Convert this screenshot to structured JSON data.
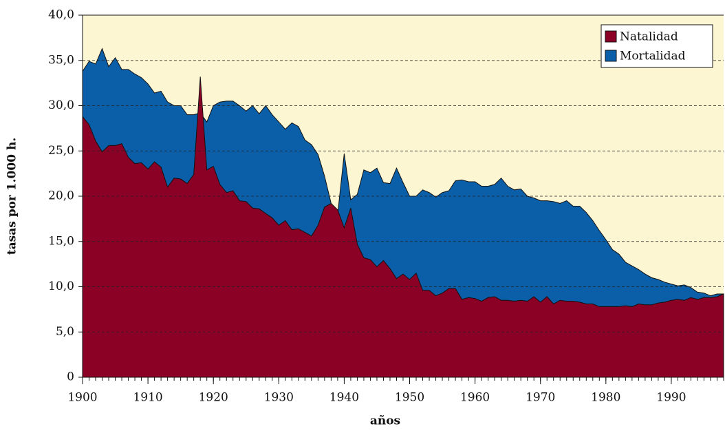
{
  "chart_data": {
    "type": "area",
    "x_label": "años",
    "y_label": "tasas por 1.000 h.",
    "x": [
      1900,
      1901,
      1902,
      1903,
      1904,
      1905,
      1906,
      1907,
      1908,
      1909,
      1910,
      1911,
      1912,
      1913,
      1914,
      1915,
      1916,
      1917,
      1918,
      1919,
      1920,
      1921,
      1922,
      1923,
      1924,
      1925,
      1926,
      1927,
      1928,
      1929,
      1930,
      1931,
      1932,
      1933,
      1934,
      1935,
      1936,
      1937,
      1938,
      1939,
      1940,
      1941,
      1942,
      1943,
      1944,
      1945,
      1946,
      1947,
      1948,
      1949,
      1950,
      1951,
      1952,
      1953,
      1954,
      1955,
      1956,
      1957,
      1958,
      1959,
      1960,
      1961,
      1962,
      1963,
      1964,
      1965,
      1966,
      1967,
      1968,
      1969,
      1970,
      1971,
      1972,
      1973,
      1974,
      1975,
      1976,
      1977,
      1978,
      1979,
      1980,
      1981,
      1982,
      1983,
      1984,
      1985,
      1986,
      1987,
      1988,
      1989,
      1990,
      1991,
      1992,
      1993,
      1994,
      1995,
      1996,
      1997,
      1998
    ],
    "series": [
      {
        "name": "Mortalidad",
        "color": "#0b5fa8",
        "values": [
          33.8,
          34.9,
          34.6,
          36.3,
          34.3,
          35.3,
          34.0,
          34.0,
          33.5,
          33.1,
          32.4,
          31.4,
          31.6,
          30.4,
          30.0,
          30.0,
          29.0,
          29.0,
          29.2,
          28.2,
          30.0,
          30.4,
          30.5,
          30.5,
          30.0,
          29.4,
          30.0,
          29.1,
          30.0,
          29.0,
          28.2,
          27.4,
          28.1,
          27.7,
          26.2,
          25.7,
          24.6,
          22.2,
          19.2,
          18.0,
          24.7,
          19.6,
          20.2,
          22.9,
          22.6,
          23.1,
          21.5,
          21.4,
          23.1,
          21.5,
          20.0,
          20.0,
          20.7,
          20.4,
          19.9,
          20.4,
          20.6,
          21.7,
          21.8,
          21.6,
          21.6,
          21.1,
          21.1,
          21.3,
          22.0,
          21.1,
          20.7,
          20.8,
          20.0,
          19.8,
          19.5,
          19.5,
          19.4,
          19.2,
          19.5,
          18.9,
          18.9,
          18.2,
          17.3,
          16.2,
          15.2,
          14.1,
          13.6,
          12.7,
          12.3,
          11.9,
          11.4,
          11.0,
          10.8,
          10.5,
          10.3,
          10.1,
          10.2,
          9.9,
          9.4,
          9.3,
          9.0,
          9.2,
          9.2
        ]
      },
      {
        "name": "Natalidad",
        "color": "#8b0025",
        "values": [
          28.8,
          27.9,
          26.1,
          24.9,
          25.6,
          25.6,
          25.8,
          24.3,
          23.6,
          23.7,
          23.0,
          23.8,
          23.2,
          21.0,
          22.0,
          21.9,
          21.4,
          22.4,
          33.2,
          22.9,
          23.3,
          21.3,
          20.4,
          20.6,
          19.5,
          19.4,
          18.7,
          18.6,
          18.1,
          17.6,
          16.8,
          17.3,
          16.3,
          16.4,
          16.0,
          15.6,
          16.8,
          18.8,
          19.2,
          18.5,
          16.5,
          18.7,
          14.7,
          13.2,
          13.0,
          12.2,
          12.9,
          12.0,
          10.9,
          11.4,
          10.8,
          11.5,
          9.6,
          9.6,
          9.0,
          9.3,
          9.8,
          9.8,
          8.6,
          8.8,
          8.7,
          8.4,
          8.8,
          8.9,
          8.5,
          8.5,
          8.4,
          8.5,
          8.4,
          8.9,
          8.3,
          8.9,
          8.1,
          8.5,
          8.4,
          8.4,
          8.3,
          8.1,
          8.1,
          7.8,
          7.8,
          7.8,
          7.8,
          7.9,
          7.8,
          8.1,
          8.0,
          8.0,
          8.2,
          8.3,
          8.5,
          8.6,
          8.5,
          8.8,
          8.6,
          8.8,
          8.8,
          8.9,
          9.2
        ]
      }
    ],
    "legend_order": [
      1,
      0
    ],
    "xlim": [
      1900,
      1998
    ],
    "xticks": [
      1900,
      1910,
      1920,
      1930,
      1940,
      1950,
      1960,
      1970,
      1980,
      1990
    ],
    "ylim": [
      0,
      40
    ],
    "yticks": [
      0,
      {
        "value": 5,
        "label": "5,0"
      },
      {
        "value": 10,
        "label": "10,0"
      },
      {
        "value": 15,
        "label": "15,0"
      },
      {
        "value": 20,
        "label": "20,0"
      },
      {
        "value": 25,
        "label": "25,0"
      },
      {
        "value": 30,
        "label": "30,0"
      },
      {
        "value": 35,
        "label": "35,0"
      },
      {
        "value": 40,
        "label": "40,0"
      }
    ],
    "grid": true,
    "legend": "upper right",
    "background": "#fdf6d3"
  }
}
